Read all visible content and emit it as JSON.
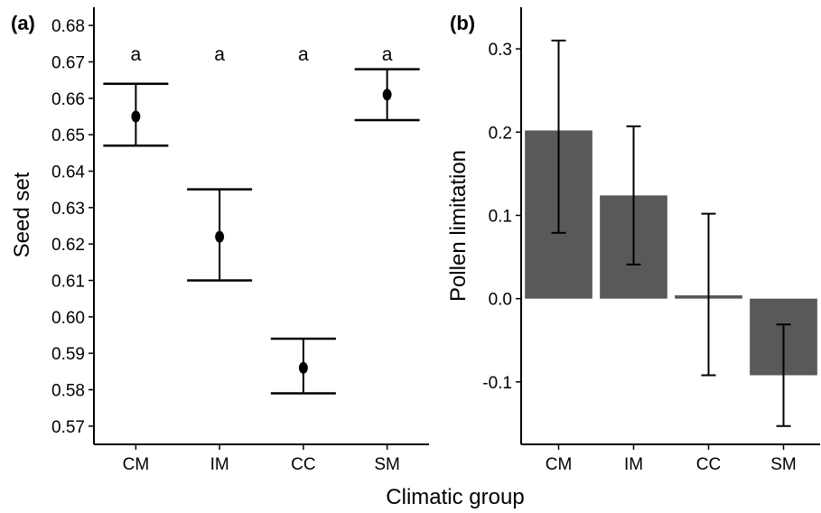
{
  "chart_data": [
    {
      "panel_label": "(a)",
      "type": "scatter",
      "title": "",
      "ylabel": "Seed set",
      "ylim": [
        0.565,
        0.685
      ],
      "yticks": [
        0.57,
        0.58,
        0.59,
        0.6,
        0.61,
        0.62,
        0.63,
        0.64,
        0.65,
        0.66,
        0.67,
        0.68
      ],
      "categories": [
        "CM",
        "IM",
        "CC",
        "SM"
      ],
      "values": [
        0.655,
        0.622,
        0.586,
        0.661
      ],
      "error_low": [
        0.647,
        0.61,
        0.579,
        0.654
      ],
      "error_high": [
        0.664,
        0.635,
        0.594,
        0.668
      ],
      "letters": [
        "a",
        "a",
        "a",
        "a"
      ],
      "grid": false
    },
    {
      "panel_label": "(b)",
      "type": "bar",
      "title": "",
      "ylabel": "Pollen limitation",
      "ylim": [
        -0.175,
        0.35
      ],
      "yticks": [
        -0.1,
        0.0,
        0.1,
        0.2,
        0.3
      ],
      "ytick_labels": [
        "-0.1",
        "0.0",
        "0.1",
        "0.2",
        "0.3"
      ],
      "categories": [
        "CM",
        "IM",
        "CC",
        "SM"
      ],
      "values": [
        0.202,
        0.124,
        0.004,
        -0.092
      ],
      "error_low": [
        0.079,
        0.041,
        -0.092,
        -0.153
      ],
      "error_high": [
        0.31,
        0.207,
        0.102,
        -0.031
      ],
      "bar_color": "#595959",
      "grid": false
    }
  ],
  "shared_xlabel": "Climatic group"
}
